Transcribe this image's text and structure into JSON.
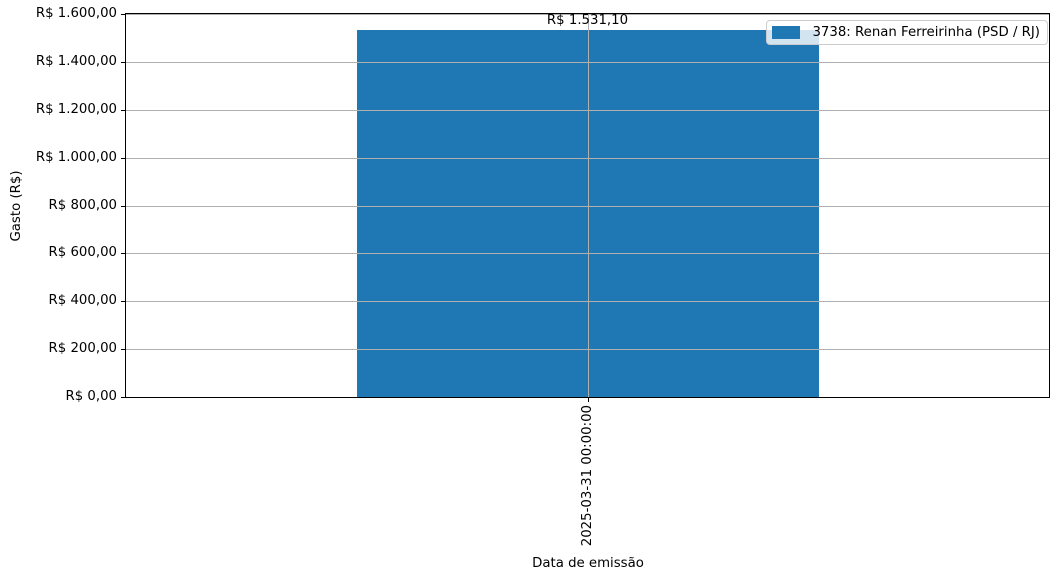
{
  "chart_data": {
    "type": "bar",
    "title": "",
    "xlabel": "Data de emissão",
    "ylabel": "Gasto (R$)",
    "categories": [
      "2025-03-31 00:00:00"
    ],
    "series": [
      {
        "name": "3738: Renan Ferreirinha (PSD / RJ)",
        "values": [
          1531.1
        ]
      }
    ],
    "bar_value_labels": [
      "R$ 1.531,10"
    ],
    "y_ticks": [
      {
        "value": 0,
        "label": "R$ 0,00"
      },
      {
        "value": 200,
        "label": "R$ 200,00"
      },
      {
        "value": 400,
        "label": "R$ 400,00"
      },
      {
        "value": 600,
        "label": "R$ 600,00"
      },
      {
        "value": 800,
        "label": "R$ 800,00"
      },
      {
        "value": 1000,
        "label": "R$ 1.000,00"
      },
      {
        "value": 1200,
        "label": "R$ 1.200,00"
      },
      {
        "value": 1400,
        "label": "R$ 1.400,00"
      },
      {
        "value": 1600,
        "label": "R$ 1.600,00"
      }
    ],
    "ylim": [
      0,
      1600
    ],
    "grid": true,
    "legend_position": "upper right",
    "colors": {
      "bar": "#1f77b4",
      "grid": "#b0b0b0",
      "axis": "#000000",
      "legend_border": "#cccccc"
    }
  }
}
